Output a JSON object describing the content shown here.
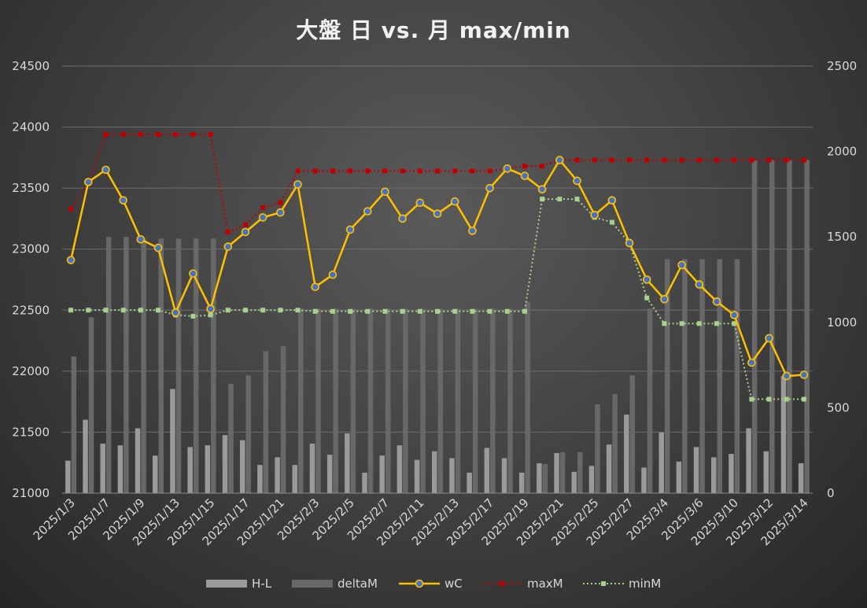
{
  "chart_data": {
    "type": "bar+line",
    "title": "大盤 日 vs. 月 max/min",
    "ylim_left": [
      21000,
      24500
    ],
    "yticks_left": [
      21000,
      21500,
      22000,
      22500,
      23000,
      23500,
      24000,
      24500
    ],
    "ylim_right": [
      0,
      2500
    ],
    "yticks_right": [
      0,
      500,
      1000,
      1500,
      2000,
      2500
    ],
    "grid": true,
    "legend_position": "bottom",
    "x": [
      "2025/1/3",
      "2025/1/6",
      "2025/1/7",
      "2025/1/8",
      "2025/1/9",
      "2025/1/10",
      "2025/1/13",
      "2025/1/14",
      "2025/1/15",
      "2025/1/16",
      "2025/1/17",
      "2025/1/20",
      "2025/1/21",
      "2025/1/22",
      "2025/2/3",
      "2025/2/4",
      "2025/2/5",
      "2025/2/6",
      "2025/2/7",
      "2025/2/10",
      "2025/2/11",
      "2025/2/12",
      "2025/2/13",
      "2025/2/14",
      "2025/2/17",
      "2025/2/18",
      "2025/2/19",
      "2025/2/20",
      "2025/2/21",
      "2025/2/24",
      "2025/2/25",
      "2025/2/26",
      "2025/2/27",
      "2025/3/3",
      "2025/3/4",
      "2025/3/5",
      "2025/3/6",
      "2025/3/7",
      "2025/3/10",
      "2025/3/11",
      "2025/3/12",
      "2025/3/13",
      "2025/3/14"
    ],
    "x_tick_labels_shown": [
      "2025/1/3",
      "2025/1/7",
      "2025/1/9",
      "2025/1/13",
      "2025/1/15",
      "2025/1/17",
      "2025/1/21",
      "2025/2/3",
      "2025/2/5",
      "2025/2/7",
      "2025/2/11",
      "2025/2/13",
      "2025/2/17",
      "2025/2/19",
      "2025/2/21",
      "2025/2/25",
      "2025/2/27",
      "2025/3/4",
      "2025/3/6",
      "2025/3/10",
      "2025/3/12",
      "2025/3/14"
    ],
    "series": [
      {
        "name": "H-L",
        "type": "bar",
        "axis": "right",
        "color": "#9a9a9a",
        "values": [
          190,
          430,
          290,
          280,
          380,
          220,
          610,
          270,
          280,
          340,
          310,
          165,
          210,
          165,
          290,
          225,
          350,
          120,
          220,
          280,
          195,
          245,
          205,
          120,
          265,
          205,
          120,
          175,
          235,
          125,
          160,
          285,
          460,
          150,
          355,
          185,
          270,
          210,
          230,
          380,
          245,
          685,
          175
        ]
      },
      {
        "name": "deltaM",
        "type": "bar",
        "axis": "right",
        "color": "#686868",
        "values": [
          800,
          1030,
          1500,
          1500,
          1490,
          1490,
          1490,
          1490,
          1490,
          640,
          690,
          830,
          860,
          1080,
          1080,
          1080,
          1080,
          1080,
          1080,
          1080,
          1080,
          1080,
          1080,
          1080,
          1080,
          1080,
          1120,
          170,
          240,
          240,
          520,
          580,
          690,
          1080,
          1370,
          1370,
          1370,
          1370,
          1370,
          1950,
          1950,
          1950,
          1950
        ]
      },
      {
        "name": "wC",
        "type": "line",
        "axis": "left",
        "color": "#ffc000",
        "marker_color": "#4472c4",
        "values": [
          22910,
          23550,
          23650,
          23400,
          23080,
          23010,
          22480,
          22800,
          22510,
          23020,
          23140,
          23260,
          23300,
          23530,
          22690,
          22790,
          23160,
          23310,
          23470,
          23250,
          23380,
          23290,
          23390,
          23150,
          23500,
          23660,
          23600,
          23490,
          23730,
          23560,
          23280,
          23400,
          23050,
          22750,
          22590,
          22870,
          22710,
          22570,
          22460,
          22070,
          22270,
          21960,
          21970
        ]
      },
      {
        "name": "maxM",
        "type": "line",
        "axis": "left",
        "color": "#c00000",
        "dashed": true,
        "values": [
          23330,
          23550,
          23940,
          23940,
          23940,
          23940,
          23940,
          23940,
          23940,
          23140,
          23200,
          23340,
          23380,
          23640,
          23640,
          23640,
          23640,
          23640,
          23640,
          23640,
          23640,
          23640,
          23640,
          23640,
          23640,
          23660,
          23680,
          23680,
          23730,
          23730,
          23730,
          23730,
          23730,
          23730,
          23730,
          23730,
          23730,
          23730,
          23730,
          23730,
          23730,
          23730,
          23730
        ]
      },
      {
        "name": "minM",
        "type": "line",
        "axis": "left",
        "color": "#a9d18e",
        "dashed": true,
        "values": [
          22500,
          22500,
          22500,
          22500,
          22500,
          22500,
          22460,
          22450,
          22460,
          22500,
          22500,
          22500,
          22500,
          22500,
          22490,
          22490,
          22490,
          22490,
          22490,
          22490,
          22490,
          22490,
          22490,
          22490,
          22490,
          22490,
          22490,
          23410,
          23410,
          23410,
          23260,
          23220,
          23050,
          22600,
          22390,
          22390,
          22390,
          22390,
          22390,
          21770,
          21770,
          21770,
          21770
        ]
      }
    ]
  }
}
